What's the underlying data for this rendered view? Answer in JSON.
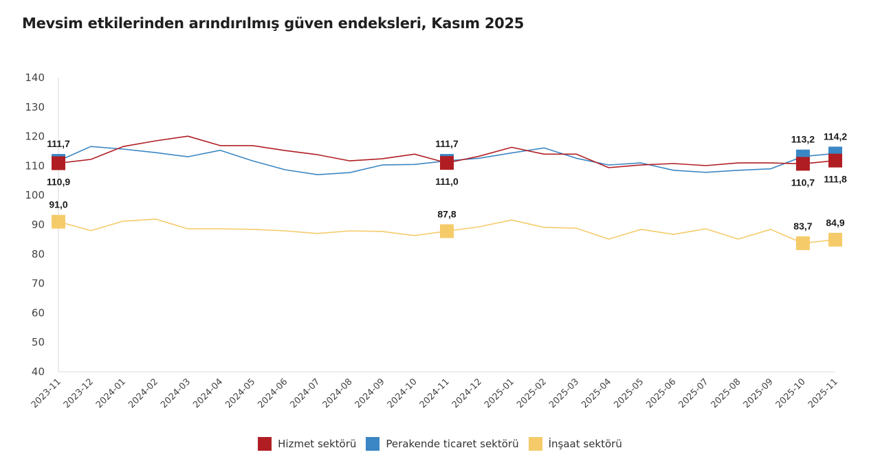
{
  "title": "Mevsim etkilerinden arındırılmış güven endeksleri, Kasım 2025",
  "chart_data": {
    "type": "line",
    "title": "Mevsim etkilerinden arındırılmış güven endeksleri, Kasım 2025",
    "xlabel": "",
    "ylabel": "",
    "ylim": [
      40,
      140
    ],
    "yticks": [
      "40",
      "50",
      "60",
      "70",
      "80",
      "90",
      "100",
      "110",
      "120",
      "130",
      "140"
    ],
    "ytick_values": [
      40,
      50,
      60,
      70,
      80,
      90,
      100,
      110,
      120,
      130,
      140
    ],
    "grid": false,
    "legend_position": "bottom-center",
    "categories": [
      "2023-11",
      "2023-12",
      "2024-01",
      "2024-02",
      "2024-03",
      "2024-04",
      "2024-05",
      "2024-06",
      "2024-07",
      "2024-08",
      "2024-09",
      "2024-10",
      "2024-11",
      "2024-12",
      "2025-01",
      "2025-02",
      "2025-03",
      "2025-04",
      "2025-05",
      "2025-06",
      "2025-07",
      "2025-08",
      "2025-09",
      "2025-10",
      "2025-11"
    ],
    "series": [
      {
        "name": "Perakende ticaret sektörü",
        "color": "#3b86c4",
        "values": [
          111.7,
          116.6,
          115.7,
          114.5,
          113.1,
          115.3,
          111.7,
          108.7,
          107.0,
          107.7,
          110.3,
          110.5,
          111.7,
          112.6,
          114.4,
          116.1,
          112.6,
          110.3,
          111.0,
          108.5,
          107.8,
          108.5,
          109.0,
          113.2,
          114.2
        ],
        "labeled_points": [
          {
            "index": 0,
            "label": "111,7",
            "position": "above"
          },
          {
            "index": 12,
            "label": "111,7",
            "position": "above"
          },
          {
            "index": 23,
            "label": "113,2",
            "position": "above"
          },
          {
            "index": 24,
            "label": "114,2",
            "position": "above"
          }
        ]
      },
      {
        "name": "Hizmet sektörü",
        "color": "#b01e23",
        "values": [
          110.9,
          112.2,
          116.6,
          118.5,
          120.1,
          116.9,
          116.9,
          115.2,
          113.8,
          111.7,
          112.4,
          114.0,
          111.0,
          113.3,
          116.3,
          114.0,
          114.0,
          109.4,
          110.3,
          110.8,
          110.1,
          111.0,
          111.0,
          110.7,
          111.8
        ],
        "labeled_points": [
          {
            "index": 0,
            "label": "110,9",
            "position": "below"
          },
          {
            "index": 12,
            "label": "111,0",
            "position": "below"
          },
          {
            "index": 23,
            "label": "110,7",
            "position": "below"
          },
          {
            "index": 24,
            "label": "111,8",
            "position": "below"
          }
        ]
      },
      {
        "name": "İnşaat sektörü",
        "color": "#f5cb6a",
        "values": [
          91.0,
          88.0,
          91.2,
          91.9,
          88.6,
          88.6,
          88.4,
          87.9,
          87.0,
          87.9,
          87.7,
          86.3,
          87.8,
          89.3,
          91.6,
          89.1,
          88.8,
          85.1,
          88.4,
          86.7,
          88.6,
          85.1,
          88.4,
          83.7,
          84.9
        ],
        "labeled_points": [
          {
            "index": 0,
            "label": "91,0",
            "position": "above"
          },
          {
            "index": 12,
            "label": "87,8",
            "position": "above"
          },
          {
            "index": 23,
            "label": "83,7",
            "position": "above"
          },
          {
            "index": 24,
            "label": "84,9",
            "position": "above"
          }
        ]
      }
    ]
  },
  "legend": [
    {
      "label": "Hizmet sektörü",
      "color": "#b01e23"
    },
    {
      "label": "Perakende ticaret sektörü",
      "color": "#3b86c4"
    },
    {
      "label": "İnşaat sektörü",
      "color": "#f5cb6a"
    }
  ]
}
